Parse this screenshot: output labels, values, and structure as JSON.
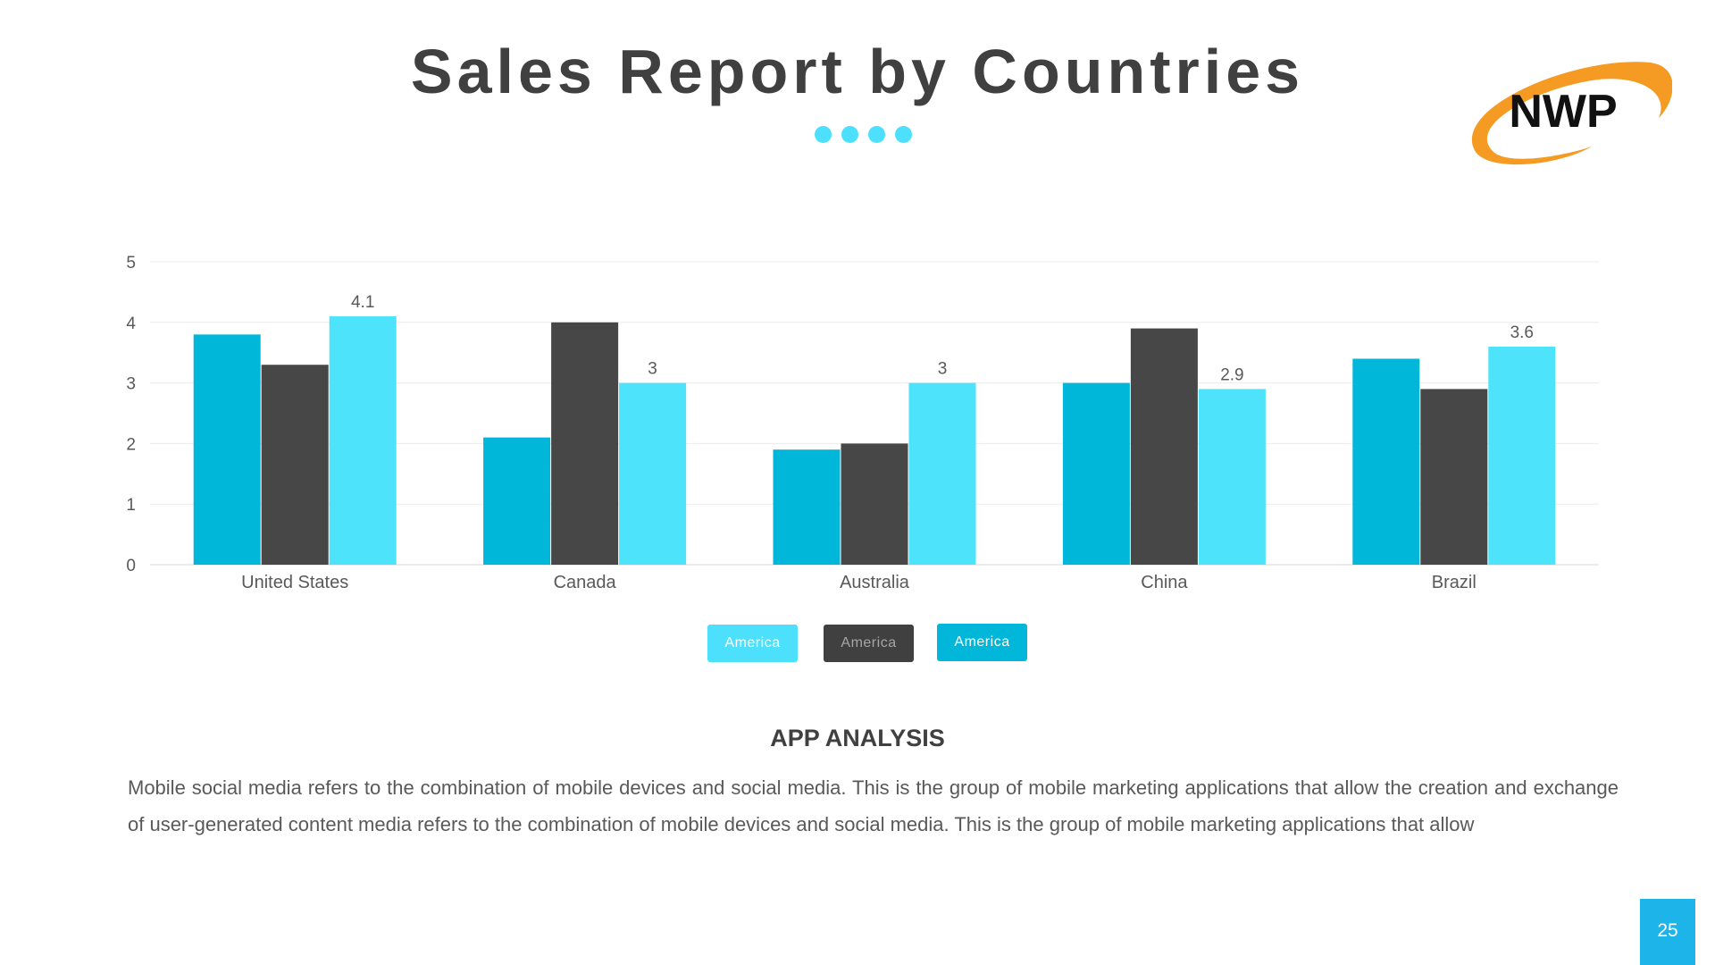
{
  "slide": {
    "title": "Sales Report by Countries",
    "logo_text": "NWP",
    "page_number": "25",
    "section_title": "APP ANALYSIS",
    "body": "Mobile social media refers to the combination of mobile devices and social media. This is the group of mobile marketing applications that allow the creation and exchange of user-generated content media refers to the combination of mobile devices and social media. This is the group of mobile marketing applications that allow"
  },
  "colors": {
    "accent": "#4de0fc",
    "dark": "#404040",
    "teal": "#00b7d9",
    "logo_orange": "#f59a23"
  },
  "legend": [
    {
      "label": "America",
      "bg": "#4de0fc",
      "fg": "#ffffff"
    },
    {
      "label": "America",
      "bg": "#404040",
      "fg": "#a6a6a6"
    },
    {
      "label": "America",
      "bg": "#00b7d9",
      "fg": "#ffffff"
    }
  ],
  "chart_data": {
    "type": "bar",
    "categories": [
      "United States",
      "Canada",
      "Australia",
      "China",
      "Brazil"
    ],
    "series": [
      {
        "values": [
          3.8,
          2.1,
          1.9,
          3.0,
          3.4
        ],
        "color": "#00b7d9",
        "show_labels": false
      },
      {
        "values": [
          3.3,
          4.0,
          2.0,
          3.9,
          2.9
        ],
        "color": "#474747",
        "show_labels": false
      },
      {
        "values": [
          4.1,
          3.0,
          3.0,
          2.9,
          3.6
        ],
        "color": "#4de3fb",
        "show_labels": true
      }
    ],
    "ylim": [
      0,
      5
    ],
    "yticks": [
      0,
      1,
      2,
      3,
      4,
      5
    ],
    "grid": true
  }
}
